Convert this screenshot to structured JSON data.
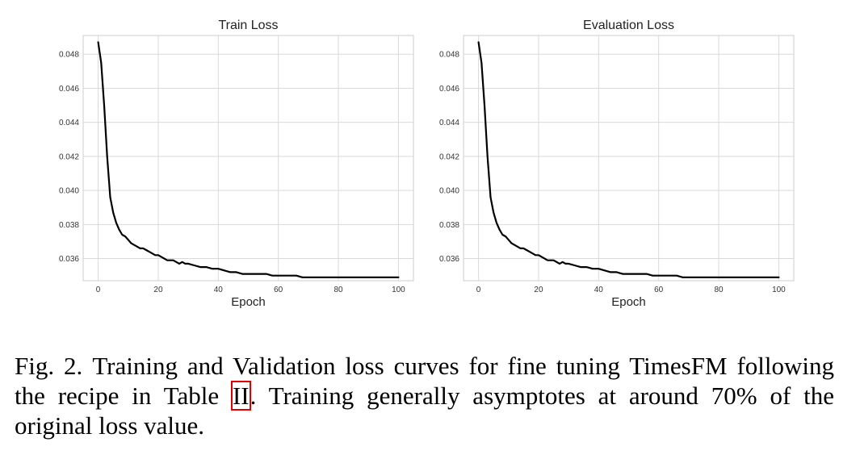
{
  "chart_data": [
    {
      "type": "line",
      "title": "Train Loss",
      "xlabel": "Epoch",
      "ylabel": "",
      "xlim": [
        -5,
        105
      ],
      "ylim": [
        0.0347,
        0.0491
      ],
      "xticks": [
        0,
        20,
        40,
        60,
        80,
        100
      ],
      "yticks": [
        0.036,
        0.038,
        0.04,
        0.042,
        0.044,
        0.046,
        0.048
      ],
      "ytick_labels": [
        "0.036",
        "0.038",
        "0.040",
        "0.042",
        "0.044",
        "0.046",
        "0.048"
      ],
      "grid": true,
      "series": [
        {
          "name": "Train Loss",
          "color": "#000000",
          "x": [
            0,
            1,
            2,
            3,
            4,
            5,
            6,
            7,
            8,
            9,
            10,
            11,
            12,
            13,
            14,
            15,
            16,
            17,
            18,
            19,
            20,
            21,
            22,
            23,
            24,
            25,
            26,
            27,
            28,
            29,
            30,
            32,
            34,
            36,
            38,
            40,
            42,
            44,
            46,
            48,
            50,
            52,
            54,
            56,
            58,
            60,
            62,
            64,
            66,
            68,
            70,
            72,
            74,
            76,
            78,
            80,
            82,
            84,
            86,
            88,
            90,
            92,
            94,
            96,
            98,
            100
          ],
          "values": [
            0.0487,
            0.0475,
            0.045,
            0.042,
            0.0396,
            0.0387,
            0.0381,
            0.0377,
            0.0374,
            0.0373,
            0.0371,
            0.0369,
            0.0368,
            0.0367,
            0.0366,
            0.0366,
            0.0365,
            0.0364,
            0.0363,
            0.0362,
            0.0362,
            0.0361,
            0.036,
            0.0359,
            0.0359,
            0.0359,
            0.0358,
            0.0357,
            0.0358,
            0.0357,
            0.0357,
            0.0356,
            0.0355,
            0.0355,
            0.0354,
            0.0354,
            0.0353,
            0.0352,
            0.0352,
            0.0351,
            0.0351,
            0.0351,
            0.0351,
            0.0351,
            0.035,
            0.035,
            0.035,
            0.035,
            0.035,
            0.0349,
            0.0349,
            0.0349,
            0.0349,
            0.0349,
            0.0349,
            0.0349,
            0.0349,
            0.0349,
            0.0349,
            0.0349,
            0.0349,
            0.0349,
            0.0349,
            0.0349,
            0.0349,
            0.0349
          ]
        }
      ]
    },
    {
      "type": "line",
      "title": "Evaluation Loss",
      "xlabel": "Epoch",
      "ylabel": "",
      "xlim": [
        -5,
        105
      ],
      "ylim": [
        0.0347,
        0.0491
      ],
      "xticks": [
        0,
        20,
        40,
        60,
        80,
        100
      ],
      "yticks": [
        0.036,
        0.038,
        0.04,
        0.042,
        0.044,
        0.046,
        0.048
      ],
      "ytick_labels": [
        "0.036",
        "0.038",
        "0.040",
        "0.042",
        "0.044",
        "0.046",
        "0.048"
      ],
      "grid": true,
      "series": [
        {
          "name": "Evaluation Loss",
          "color": "#000000",
          "x": [
            0,
            1,
            2,
            3,
            4,
            5,
            6,
            7,
            8,
            9,
            10,
            11,
            12,
            13,
            14,
            15,
            16,
            17,
            18,
            19,
            20,
            21,
            22,
            23,
            24,
            25,
            26,
            27,
            28,
            29,
            30,
            32,
            34,
            36,
            38,
            40,
            42,
            44,
            46,
            48,
            50,
            52,
            54,
            56,
            58,
            60,
            62,
            64,
            66,
            68,
            70,
            72,
            74,
            76,
            78,
            80,
            82,
            84,
            86,
            88,
            90,
            92,
            94,
            96,
            98,
            100
          ],
          "values": [
            0.0487,
            0.0475,
            0.045,
            0.042,
            0.0396,
            0.0387,
            0.0381,
            0.0377,
            0.0374,
            0.0373,
            0.0371,
            0.0369,
            0.0368,
            0.0367,
            0.0366,
            0.0366,
            0.0365,
            0.0364,
            0.0363,
            0.0362,
            0.0362,
            0.0361,
            0.036,
            0.0359,
            0.0359,
            0.0359,
            0.0358,
            0.0357,
            0.0358,
            0.0357,
            0.0357,
            0.0356,
            0.0355,
            0.0355,
            0.0354,
            0.0354,
            0.0353,
            0.0352,
            0.0352,
            0.0351,
            0.0351,
            0.0351,
            0.0351,
            0.0351,
            0.035,
            0.035,
            0.035,
            0.035,
            0.035,
            0.0349,
            0.0349,
            0.0349,
            0.0349,
            0.0349,
            0.0349,
            0.0349,
            0.0349,
            0.0349,
            0.0349,
            0.0349,
            0.0349,
            0.0349,
            0.0349,
            0.0349,
            0.0349,
            0.0349
          ]
        }
      ]
    }
  ],
  "caption": {
    "label": "Fig. 2.",
    "text_part1": "Training and Validation loss curves for fine tuning TimesFM following the recipe in Table ",
    "ref": "II",
    "text_part2": ". Training generally asymptotes at around 70% of the original loss value."
  }
}
